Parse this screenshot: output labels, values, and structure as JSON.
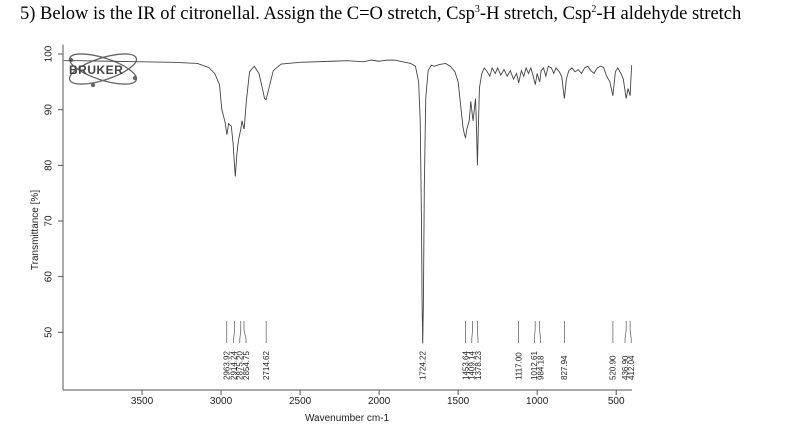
{
  "question": {
    "prefix": "5) Below is the IR of citronellal. Assign the C=O stretch, Csp",
    "sup1": "3",
    "middle": "-H stretch, Csp",
    "sup2": "2",
    "suffix": "-H aldehyde stretch"
  },
  "logo": {
    "text": "BRUKER"
  },
  "chart_data": {
    "type": "line",
    "title": "",
    "xlabel": "Wavenumber cm-1",
    "ylabel": "Transmittance [%]",
    "xlim": [
      4000,
      400
    ],
    "ylim": [
      40,
      100
    ],
    "x_ticks": [
      3500,
      3000,
      2500,
      2000,
      1500,
      1000,
      500
    ],
    "y_ticks": [
      50,
      60,
      70,
      80,
      90,
      100
    ],
    "grid": false,
    "series": [
      {
        "values": [
          [
            3995,
            98.8
          ],
          [
            3900,
            98.8
          ],
          [
            3700,
            98.7
          ],
          [
            3500,
            98.6
          ],
          [
            3300,
            98.5
          ],
          [
            3150,
            98.3
          ],
          [
            3080,
            97.6
          ],
          [
            3040,
            96.5
          ],
          [
            3010,
            94.5
          ],
          [
            2995,
            90.0
          ],
          [
            2975,
            87.8
          ],
          [
            2963,
            85.5
          ],
          [
            2952,
            87.5
          ],
          [
            2935,
            87.0
          ],
          [
            2924,
            84.0
          ],
          [
            2915,
            80.0
          ],
          [
            2910,
            78.0
          ],
          [
            2900,
            82.0
          ],
          [
            2890,
            84.5
          ],
          [
            2875,
            86.5
          ],
          [
            2868,
            88.0
          ],
          [
            2854,
            86.5
          ],
          [
            2840,
            91.5
          ],
          [
            2820,
            96.8
          ],
          [
            2790,
            97.8
          ],
          [
            2760,
            96.5
          ],
          [
            2740,
            94.0
          ],
          [
            2725,
            92.0
          ],
          [
            2715,
            91.8
          ],
          [
            2700,
            93.5
          ],
          [
            2670,
            97.0
          ],
          [
            2620,
            98.2
          ],
          [
            2500,
            98.5
          ],
          [
            2300,
            98.7
          ],
          [
            2200,
            98.8
          ],
          [
            2100,
            98.6
          ],
          [
            2050,
            98.9
          ],
          [
            2000,
            98.7
          ],
          [
            1950,
            98.9
          ],
          [
            1900,
            98.9
          ],
          [
            1850,
            98.6
          ],
          [
            1800,
            98.3
          ],
          [
            1770,
            97.8
          ],
          [
            1750,
            95.0
          ],
          [
            1740,
            88.0
          ],
          [
            1732,
            70.0
          ],
          [
            1728,
            55.0
          ],
          [
            1724,
            48.0
          ],
          [
            1720,
            55.0
          ],
          [
            1714,
            76.0
          ],
          [
            1705,
            92.0
          ],
          [
            1690,
            97.0
          ],
          [
            1670,
            98.0
          ],
          [
            1650,
            97.8
          ],
          [
            1620,
            98.1
          ],
          [
            1580,
            98.3
          ],
          [
            1550,
            97.8
          ],
          [
            1520,
            96.8
          ],
          [
            1500,
            95.0
          ],
          [
            1485,
            91.0
          ],
          [
            1470,
            87.0
          ],
          [
            1460,
            85.5
          ],
          [
            1453,
            85.0
          ],
          [
            1445,
            86.5
          ],
          [
            1430,
            88.0
          ],
          [
            1420,
            91.5
          ],
          [
            1410,
            89.0
          ],
          [
            1405,
            88.0
          ],
          [
            1398,
            90.0
          ],
          [
            1390,
            92.0
          ],
          [
            1385,
            88.0
          ],
          [
            1378,
            80.0
          ],
          [
            1373,
            86.0
          ],
          [
            1365,
            94.0
          ],
          [
            1350,
            96.5
          ],
          [
            1335,
            97.5
          ],
          [
            1320,
            97.0
          ],
          [
            1300,
            96.0
          ],
          [
            1285,
            97.5
          ],
          [
            1265,
            96.5
          ],
          [
            1250,
            97.5
          ],
          [
            1230,
            96.2
          ],
          [
            1210,
            97.2
          ],
          [
            1190,
            96.0
          ],
          [
            1170,
            97.0
          ],
          [
            1150,
            95.5
          ],
          [
            1130,
            96.5
          ],
          [
            1117,
            94.8
          ],
          [
            1100,
            97.0
          ],
          [
            1085,
            96.0
          ],
          [
            1070,
            97.5
          ],
          [
            1055,
            96.5
          ],
          [
            1040,
            97.5
          ],
          [
            1025,
            96.0
          ],
          [
            1012,
            94.5
          ],
          [
            1000,
            96.5
          ],
          [
            990,
            95.5
          ],
          [
            984,
            95.0
          ],
          [
            975,
            97.0
          ],
          [
            960,
            97.5
          ],
          [
            945,
            96.0
          ],
          [
            930,
            97.8
          ],
          [
            910,
            97.5
          ],
          [
            895,
            96.5
          ],
          [
            880,
            97.5
          ],
          [
            860,
            96.8
          ],
          [
            845,
            96.0
          ],
          [
            828,
            92.0
          ],
          [
            815,
            95.5
          ],
          [
            800,
            97.0
          ],
          [
            780,
            97.5
          ],
          [
            760,
            96.8
          ],
          [
            740,
            97.2
          ],
          [
            720,
            96.5
          ],
          [
            700,
            97.5
          ],
          [
            680,
            97.8
          ],
          [
            660,
            97.0
          ],
          [
            640,
            96.5
          ],
          [
            620,
            97.5
          ],
          [
            600,
            97.8
          ],
          [
            580,
            97.6
          ],
          [
            560,
            96.0
          ],
          [
            540,
            95.0
          ],
          [
            521,
            92.5
          ],
          [
            505,
            96.8
          ],
          [
            490,
            97.5
          ],
          [
            470,
            96.5
          ],
          [
            455,
            95.5
          ],
          [
            437,
            92.0
          ],
          [
            425,
            93.8
          ],
          [
            412,
            92.5
          ],
          [
            405,
            96.5
          ],
          [
            402,
            98.0
          ]
        ]
      }
    ],
    "peak_labels": [
      {
        "x": 2963.92,
        "label": "2963.92"
      },
      {
        "x": 2914.24,
        "label": "2914.24"
      },
      {
        "x": 2875.2,
        "label": "2875.20"
      },
      {
        "x": 2854.75,
        "label": "2854.75"
      },
      {
        "x": 2714.62,
        "label": "2714.62"
      },
      {
        "x": 1724.22,
        "label": "1724.22"
      },
      {
        "x": 1453.64,
        "label": "1453.64"
      },
      {
        "x": 1409.14,
        "label": "1409.14"
      },
      {
        "x": 1378.23,
        "label": "1378.23"
      },
      {
        "x": 1117.0,
        "label": "1117.00"
      },
      {
        "x": 1012.61,
        "label": "1012.61"
      },
      {
        "x": 984.18,
        "label": "984.18"
      },
      {
        "x": 827.94,
        "label": "827.94"
      },
      {
        "x": 520.9,
        "label": "520.90"
      },
      {
        "x": 436.9,
        "label": "436.90"
      },
      {
        "x": 412.04,
        "label": "412.04"
      }
    ]
  }
}
